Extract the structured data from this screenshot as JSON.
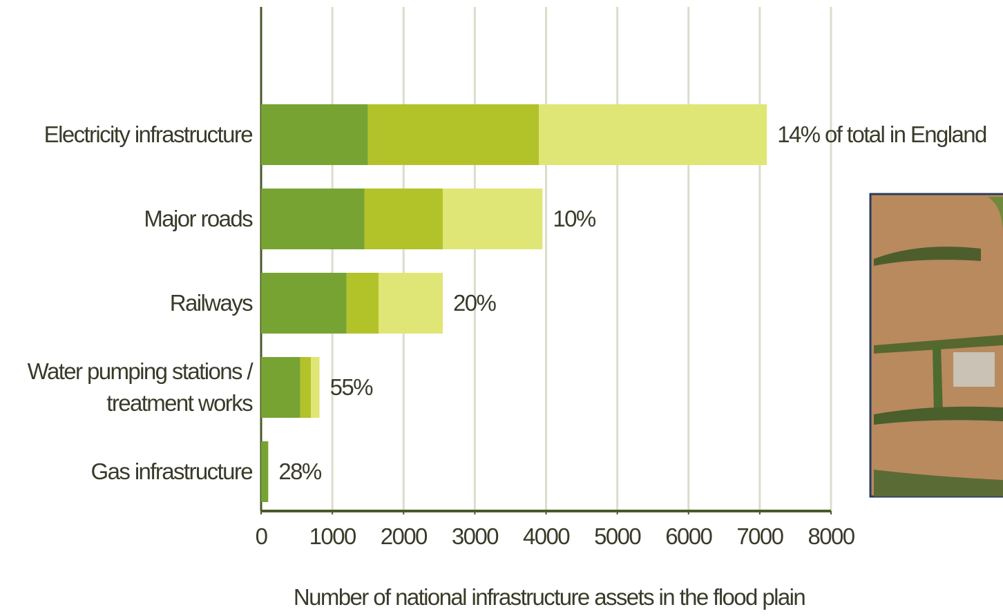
{
  "chart_data": {
    "type": "stacked-barh",
    "categories": [
      "Electricity infrastructure",
      "Major roads",
      "Railways",
      "Water pumping stations /\ntreatment works",
      "Gas infrastructure"
    ],
    "series": [
      {
        "color": "#77a332",
        "values": [
          1500,
          1450,
          1200,
          550,
          100
        ]
      },
      {
        "color": "#b2c229",
        "values": [
          2400,
          1100,
          450,
          150,
          0
        ]
      },
      {
        "color": "#dfe675",
        "values": [
          3200,
          1400,
          900,
          120,
          0
        ]
      }
    ],
    "annotations": [
      "14% of total in England",
      "10%",
      "20%",
      "55%",
      "28%"
    ],
    "xlabel": "Number of national infrastructure assets in the flood plain",
    "xlim": [
      0,
      8000
    ],
    "xticks": [
      0,
      1000,
      2000,
      3000,
      4000,
      5000,
      6000,
      7000,
      8000
    ],
    "grid": true
  }
}
